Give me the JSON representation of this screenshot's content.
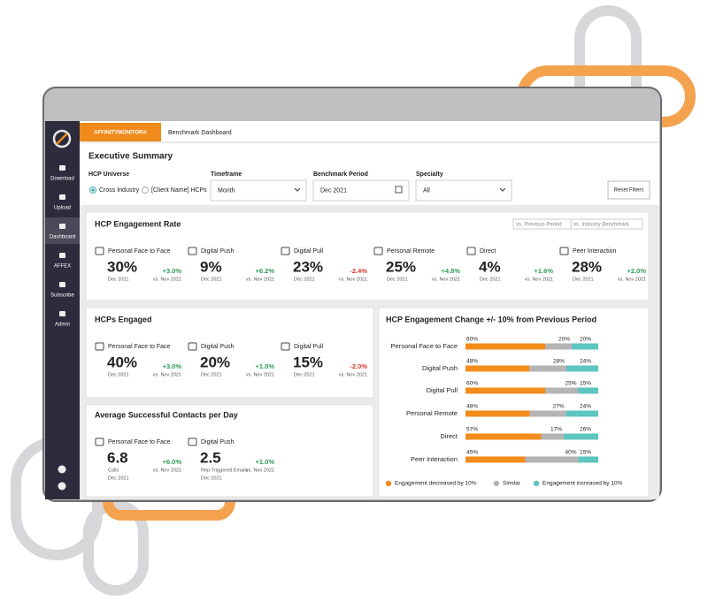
{
  "header": {
    "brand": "AFFINITYMONITOR®",
    "page": "Benchmark Dashboard"
  },
  "sidebar": [
    "Download",
    "Upload",
    "Dashboard",
    "AFFEX",
    "Subscribe",
    "Admin"
  ],
  "title": "Executive Summary",
  "filters": {
    "universe_label": "HCP Universe",
    "universe_options": [
      "Cross Industry",
      "[Client Name] HCPs"
    ],
    "timeframe_label": "Timeframe",
    "timeframe": "Month",
    "period_label": "Benchmark Period",
    "period": "Dec 2021",
    "specialty_label": "Specialty",
    "specialty": "All",
    "reset": "Reset Filters"
  },
  "engagement_rate": {
    "title": "HCP Engagement Rate",
    "toggle": [
      "vs. Previous Period",
      "vs. Industry Benchmark"
    ],
    "metrics": [
      {
        "name": "Personal Face to Face",
        "value": "30%",
        "date": "Dec 2021",
        "change": "+3.0%",
        "compare": "vs. Nov 2021"
      },
      {
        "name": "Digital Push",
        "value": "9%",
        "date": "Dec 2021",
        "change": "+6.2%",
        "compare": "vs. Nov 2021"
      },
      {
        "name": "Digital Pull",
        "value": "23%",
        "date": "Dec 2021",
        "change": "-2.4%",
        "compare": "vs. Nov 2021"
      },
      {
        "name": "Personal Remote",
        "value": "25%",
        "date": "Dec 2021",
        "change": "+4.8%",
        "compare": "vs. Nov 2021"
      },
      {
        "name": "Direct",
        "value": "4%",
        "date": "Dec 2021",
        "change": "+1.6%",
        "compare": "vs. Nov 2021"
      },
      {
        "name": "Peer Interaction",
        "value": "28%",
        "date": "Dec 2021",
        "change": "+2.0%",
        "compare": "vs. Nov 2021"
      }
    ]
  },
  "hcps_engaged": {
    "title": "HCPs Engaged",
    "metrics": [
      {
        "name": "Personal Face to Face",
        "value": "40%",
        "date": "Dec 2021",
        "change": "+3.0%",
        "compare": "vs. Nov 2021"
      },
      {
        "name": "Digital Push",
        "value": "20%",
        "date": "Dec 2021",
        "change": "+1.0%",
        "compare": "vs. Nov 2021"
      },
      {
        "name": "Digital Pull",
        "value": "15%",
        "date": "Dec 2021",
        "change": "-2.0%",
        "compare": "vs. Nov 2021"
      }
    ]
  },
  "contacts": {
    "title": "Average Successful Contacts per Day",
    "metrics": [
      {
        "name": "Personal Face to Face",
        "value": "6.8",
        "unit": "Calls",
        "date": "Dec 2021",
        "change": "+6.0%",
        "compare": "vs. Nov 2021"
      },
      {
        "name": "Digital Push",
        "value": "2.5",
        "unit": "Rep-Triggered Emails",
        "date": "Dec 2021",
        "change": "+1.0%",
        "compare": "vs. Nov 2021"
      }
    ]
  },
  "chart_data": {
    "type": "stacked-bar-horizontal",
    "title": "HCP Engagement Change +/- 10% from Previous Period",
    "categories": [
      "Personal Face to Face",
      "Digital Push",
      "Digital Pull",
      "Personal Remote",
      "Direct",
      "Peer Interaction"
    ],
    "series": [
      {
        "name": "Engagement decreased by 10%",
        "color": "#f28c1b",
        "values": [
          60,
          48,
          60,
          48,
          57,
          45
        ],
        "value_labels": [
          "60%",
          "48%",
          "60%",
          "48%",
          "57%",
          "45%"
        ]
      },
      {
        "name": "Similar",
        "color": "#b5b5b5",
        "values": [
          20,
          28,
          25,
          27,
          17,
          40
        ],
        "value_labels": [
          "20%",
          "28%",
          "25%",
          "27%",
          "17%",
          "40%"
        ]
      },
      {
        "name": "Engagement increased by 10%",
        "color": "#5ec5c0",
        "values": [
          20,
          24,
          15,
          24,
          26,
          15
        ],
        "value_labels": [
          "20%",
          "24%",
          "15%",
          "24%",
          "26%",
          "15%"
        ]
      }
    ],
    "legend": "bottom"
  }
}
